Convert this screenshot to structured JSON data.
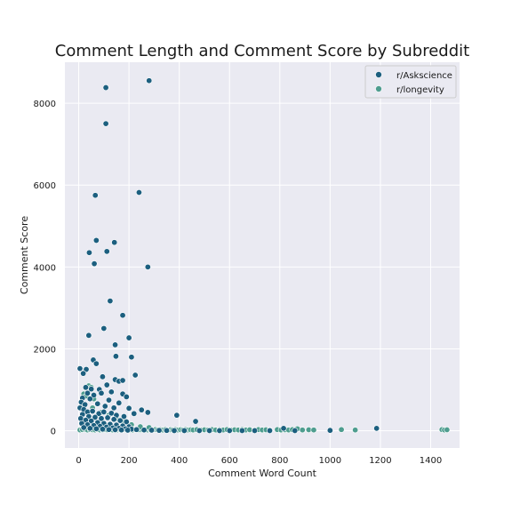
{
  "chart_data": {
    "type": "scatter",
    "title": "Comment Length and Comment Score by Subreddit",
    "xlabel": "Comment Word Count",
    "ylabel": "Comment Score",
    "xlim": [
      -55,
      1515
    ],
    "ylim": [
      -420,
      9000
    ],
    "x_ticks": [
      0,
      200,
      400,
      600,
      800,
      1000,
      1200,
      1400
    ],
    "y_ticks": [
      0,
      2000,
      4000,
      6000,
      8000
    ],
    "grid": true,
    "legend_position": "top-right",
    "series": [
      {
        "name": "r/Askscience",
        "color": "#1c5f7f",
        "points": [
          [
            108,
            8380
          ],
          [
            280,
            8550
          ],
          [
            108,
            7500
          ],
          [
            66,
            5750
          ],
          [
            240,
            5820
          ],
          [
            70,
            4650
          ],
          [
            142,
            4600
          ],
          [
            42,
            4350
          ],
          [
            112,
            4380
          ],
          [
            62,
            4080
          ],
          [
            275,
            4000
          ],
          [
            125,
            3170
          ],
          [
            175,
            2820
          ],
          [
            100,
            2500
          ],
          [
            40,
            2330
          ],
          [
            200,
            2270
          ],
          [
            145,
            2100
          ],
          [
            148,
            1820
          ],
          [
            210,
            1800
          ],
          [
            58,
            1730
          ],
          [
            70,
            1640
          ],
          [
            5,
            1520
          ],
          [
            30,
            1500
          ],
          [
            18,
            1400
          ],
          [
            95,
            1320
          ],
          [
            225,
            1360
          ],
          [
            145,
            1250
          ],
          [
            160,
            1210
          ],
          [
            175,
            1230
          ],
          [
            112,
            1120
          ],
          [
            28,
            1060
          ],
          [
            50,
            1020
          ],
          [
            82,
            1010
          ],
          [
            130,
            950
          ],
          [
            175,
            900
          ],
          [
            190,
            830
          ],
          [
            35,
            920
          ],
          [
            60,
            870
          ],
          [
            90,
            920
          ],
          [
            15,
            800
          ],
          [
            45,
            780
          ],
          [
            120,
            750
          ],
          [
            160,
            680
          ],
          [
            10,
            700
          ],
          [
            25,
            640
          ],
          [
            75,
            660
          ],
          [
            105,
            600
          ],
          [
            140,
            560
          ],
          [
            200,
            550
          ],
          [
            250,
            510
          ],
          [
            275,
            450
          ],
          [
            220,
            420
          ],
          [
            390,
            380
          ],
          [
            465,
            230
          ],
          [
            5,
            560
          ],
          [
            20,
            520
          ],
          [
            35,
            460
          ],
          [
            55,
            480
          ],
          [
            80,
            420
          ],
          [
            100,
            460
          ],
          [
            130,
            430
          ],
          [
            150,
            380
          ],
          [
            180,
            350
          ],
          [
            15,
            400
          ],
          [
            40,
            350
          ],
          [
            65,
            330
          ],
          [
            90,
            300
          ],
          [
            115,
            320
          ],
          [
            140,
            280
          ],
          [
            165,
            250
          ],
          [
            190,
            220
          ],
          [
            8,
            300
          ],
          [
            28,
            260
          ],
          [
            50,
            240
          ],
          [
            75,
            200
          ],
          [
            100,
            180
          ],
          [
            125,
            160
          ],
          [
            150,
            140
          ],
          [
            175,
            120
          ],
          [
            200,
            100
          ],
          [
            12,
            180
          ],
          [
            35,
            150
          ],
          [
            60,
            130
          ],
          [
            85,
            110
          ],
          [
            110,
            90
          ],
          [
            135,
            70
          ],
          [
            160,
            60
          ],
          [
            185,
            50
          ],
          [
            210,
            40
          ],
          [
            20,
            80
          ],
          [
            45,
            60
          ],
          [
            70,
            50
          ],
          [
            95,
            40
          ],
          [
            120,
            30
          ],
          [
            145,
            25
          ],
          [
            170,
            20
          ],
          [
            195,
            15
          ],
          [
            230,
            30
          ],
          [
            260,
            20
          ],
          [
            290,
            15
          ],
          [
            320,
            10
          ],
          [
            350,
            8
          ],
          [
            380,
            5
          ],
          [
            420,
            5
          ],
          [
            480,
            5
          ],
          [
            520,
            5
          ],
          [
            560,
            5
          ],
          [
            600,
            5
          ],
          [
            650,
            5
          ],
          [
            700,
            5
          ],
          [
            760,
            5
          ],
          [
            815,
            60
          ],
          [
            860,
            5
          ],
          [
            1000,
            10
          ],
          [
            1185,
            60
          ]
        ]
      },
      {
        "name": "r/longevity",
        "color": "#4e9d8f",
        "points": [
          [
            5,
            20
          ],
          [
            15,
            30
          ],
          [
            25,
            40
          ],
          [
            35,
            20
          ],
          [
            45,
            30
          ],
          [
            55,
            25
          ],
          [
            65,
            20
          ],
          [
            75,
            30
          ],
          [
            85,
            20
          ],
          [
            95,
            25
          ],
          [
            105,
            30
          ],
          [
            115,
            20
          ],
          [
            125,
            25
          ],
          [
            135,
            20
          ],
          [
            145,
            30
          ],
          [
            155,
            20
          ],
          [
            165,
            25
          ],
          [
            175,
            20
          ],
          [
            185,
            30
          ],
          [
            195,
            20
          ],
          [
            205,
            25
          ],
          [
            215,
            20
          ],
          [
            225,
            30
          ],
          [
            235,
            20
          ],
          [
            245,
            25
          ],
          [
            255,
            20
          ],
          [
            265,
            30
          ],
          [
            275,
            20
          ],
          [
            285,
            25
          ],
          [
            295,
            20
          ],
          [
            305,
            30
          ],
          [
            315,
            20
          ],
          [
            325,
            25
          ],
          [
            335,
            20
          ],
          [
            345,
            30
          ],
          [
            355,
            20
          ],
          [
            365,
            25
          ],
          [
            375,
            20
          ],
          [
            385,
            30
          ],
          [
            395,
            20
          ],
          [
            405,
            25
          ],
          [
            415,
            20
          ],
          [
            425,
            30
          ],
          [
            435,
            20
          ],
          [
            445,
            25
          ],
          [
            455,
            20
          ],
          [
            470,
            30
          ],
          [
            485,
            20
          ],
          [
            500,
            25
          ],
          [
            515,
            20
          ],
          [
            530,
            30
          ],
          [
            545,
            20
          ],
          [
            560,
            25
          ],
          [
            575,
            20
          ],
          [
            590,
            30
          ],
          [
            605,
            20
          ],
          [
            620,
            25
          ],
          [
            635,
            20
          ],
          [
            650,
            30
          ],
          [
            665,
            20
          ],
          [
            680,
            25
          ],
          [
            700,
            20
          ],
          [
            715,
            30
          ],
          [
            730,
            20
          ],
          [
            745,
            25
          ],
          [
            760,
            20
          ],
          [
            790,
            30
          ],
          [
            805,
            20
          ],
          [
            820,
            25
          ],
          [
            835,
            20
          ],
          [
            850,
            30
          ],
          [
            870,
            50
          ],
          [
            890,
            20
          ],
          [
            915,
            25
          ],
          [
            935,
            20
          ],
          [
            1045,
            30
          ],
          [
            1100,
            20
          ],
          [
            1445,
            30
          ],
          [
            1455,
            20
          ],
          [
            1465,
            25
          ],
          [
            40,
            1100
          ],
          [
            50,
            1060
          ],
          [
            20,
            900
          ],
          [
            30,
            850
          ],
          [
            60,
            780
          ],
          [
            15,
            650
          ],
          [
            55,
            560
          ],
          [
            90,
            450
          ],
          [
            120,
            380
          ],
          [
            150,
            300
          ],
          [
            180,
            220
          ],
          [
            210,
            150
          ],
          [
            245,
            100
          ],
          [
            280,
            80
          ]
        ]
      }
    ]
  }
}
